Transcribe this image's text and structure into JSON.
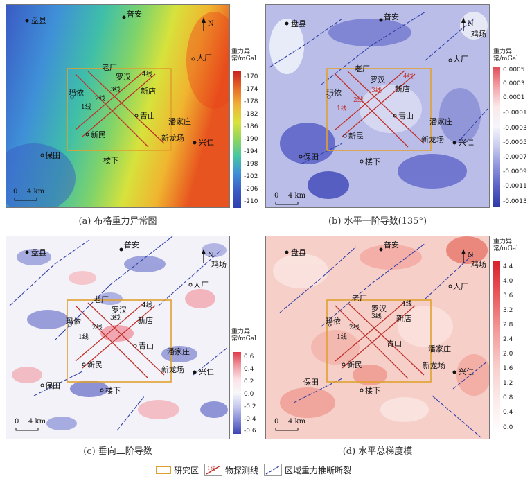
{
  "panels": [
    {
      "caption": "(a) 布格重力异常图",
      "colorbar": {
        "title": "重力异常/mGal",
        "ticks": [
          "-170",
          "-174",
          "-178",
          "-182",
          "-186",
          "-190",
          "-194",
          "-198",
          "-202",
          "-206",
          "-210"
        ]
      }
    },
    {
      "caption": "(b) 水平一阶导数(135°)",
      "colorbar": {
        "title": "重力异常/mGal",
        "ticks": [
          "0.0005",
          "0.0003",
          "0.0001",
          "-0.0001",
          "-0.0003",
          "-0.0005",
          "-0.0007",
          "-0.0009",
          "-0.0011",
          "-0.0013"
        ]
      }
    },
    {
      "caption": "(c) 垂向二阶导数",
      "colorbar": {
        "title": "重力异常/mGal",
        "ticks": [
          "0.6",
          "0.4",
          "0.2",
          "0.0",
          "-0.2",
          "-0.4",
          "-0.6"
        ]
      }
    },
    {
      "caption": "(d) 水平总梯度模",
      "colorbar": {
        "title": "重力异常/mGal",
        "ticks": [
          "4.4",
          "4.0",
          "3.6",
          "3.2",
          "2.8",
          "2.4",
          "2.0",
          "1.6",
          "1.2",
          "0.8",
          "0.4",
          "0.0"
        ]
      }
    }
  ],
  "place_names": {
    "pan": "盘县",
    "puan": "普安",
    "jichang": "鸡场",
    "renchang": "人厂",
    "dachang": "大厂",
    "laochang": "老厂",
    "luohan": "罗汉",
    "xindian": "新店",
    "mayi": "玛依",
    "qingshan": "青山",
    "panjiazhuang": "潘家庄",
    "xinmin": "新民",
    "xinlongchang": "新龙场",
    "xingren": "兴仁",
    "baotian": "保田",
    "louxia": "楼下"
  },
  "line_labels": {
    "l1": "1线",
    "l2": "2线",
    "l3": "3线",
    "l4": "4线"
  },
  "north_label": "N",
  "scale_label": "4 km",
  "legend": {
    "study_area": "研究区",
    "survey_line": "物探测线",
    "survey_line_sample": "1线",
    "fault": "区域重力推断断裂"
  },
  "colors": {
    "study_box": "#e0a030",
    "survey_line": "#c0302a",
    "fault": "#3040a8"
  }
}
